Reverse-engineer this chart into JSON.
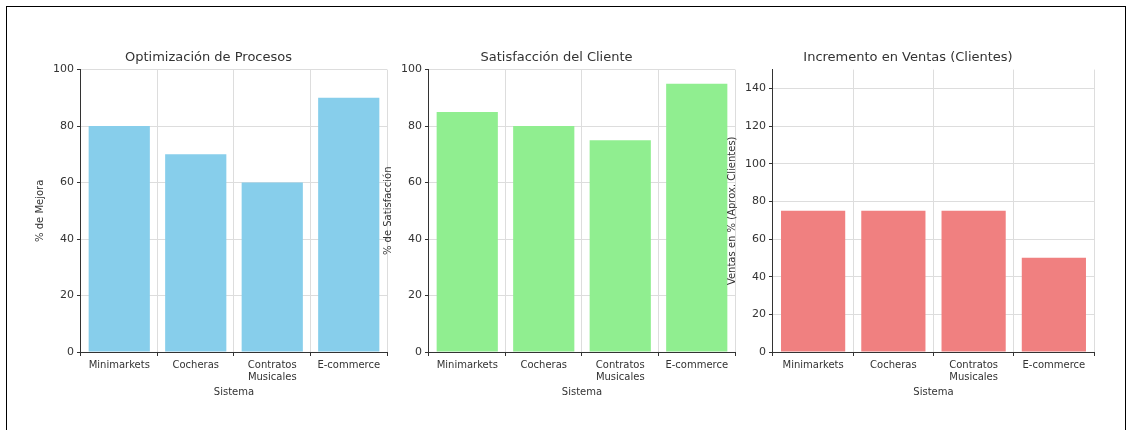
{
  "chart_data": [
    {
      "type": "bar",
      "title": "Optimización de Procesos",
      "xlabel": "Sistema",
      "ylabel": "% de Mejora",
      "categories": [
        "Minimarkets",
        "Cocheras",
        "Contratos Musicales",
        "E-commerce"
      ],
      "values": [
        80,
        70,
        60,
        90
      ],
      "color": "#87ceeb",
      "ylim": [
        0,
        100
      ],
      "yticks": [
        0,
        20,
        40,
        60,
        80,
        100
      ],
      "grid": true
    },
    {
      "type": "bar",
      "title": "Satisfacción del Cliente",
      "xlabel": "Sistema",
      "ylabel": "% de Satisfacción",
      "categories": [
        "Minimarkets",
        "Cocheras",
        "Contratos Musicales",
        "E-commerce"
      ],
      "values": [
        85,
        80,
        75,
        95
      ],
      "color": "#90ee90",
      "ylim": [
        0,
        100
      ],
      "yticks": [
        0,
        20,
        40,
        60,
        80,
        100
      ],
      "grid": true
    },
    {
      "type": "bar",
      "title": "Incremento en Ventas (Clientes)",
      "xlabel": "Sistema",
      "ylabel": "Ventas en % (Aprox. Clientes)",
      "categories": [
        "Minimarkets",
        "Cocheras",
        "Contratos Musicales",
        "E-commerce"
      ],
      "values": [
        75,
        75,
        75,
        50
      ],
      "color": "#f08080",
      "ylim": [
        0,
        150
      ],
      "yticks": [
        0,
        20,
        40,
        60,
        80,
        100,
        120,
        140
      ],
      "grid": true
    }
  ]
}
